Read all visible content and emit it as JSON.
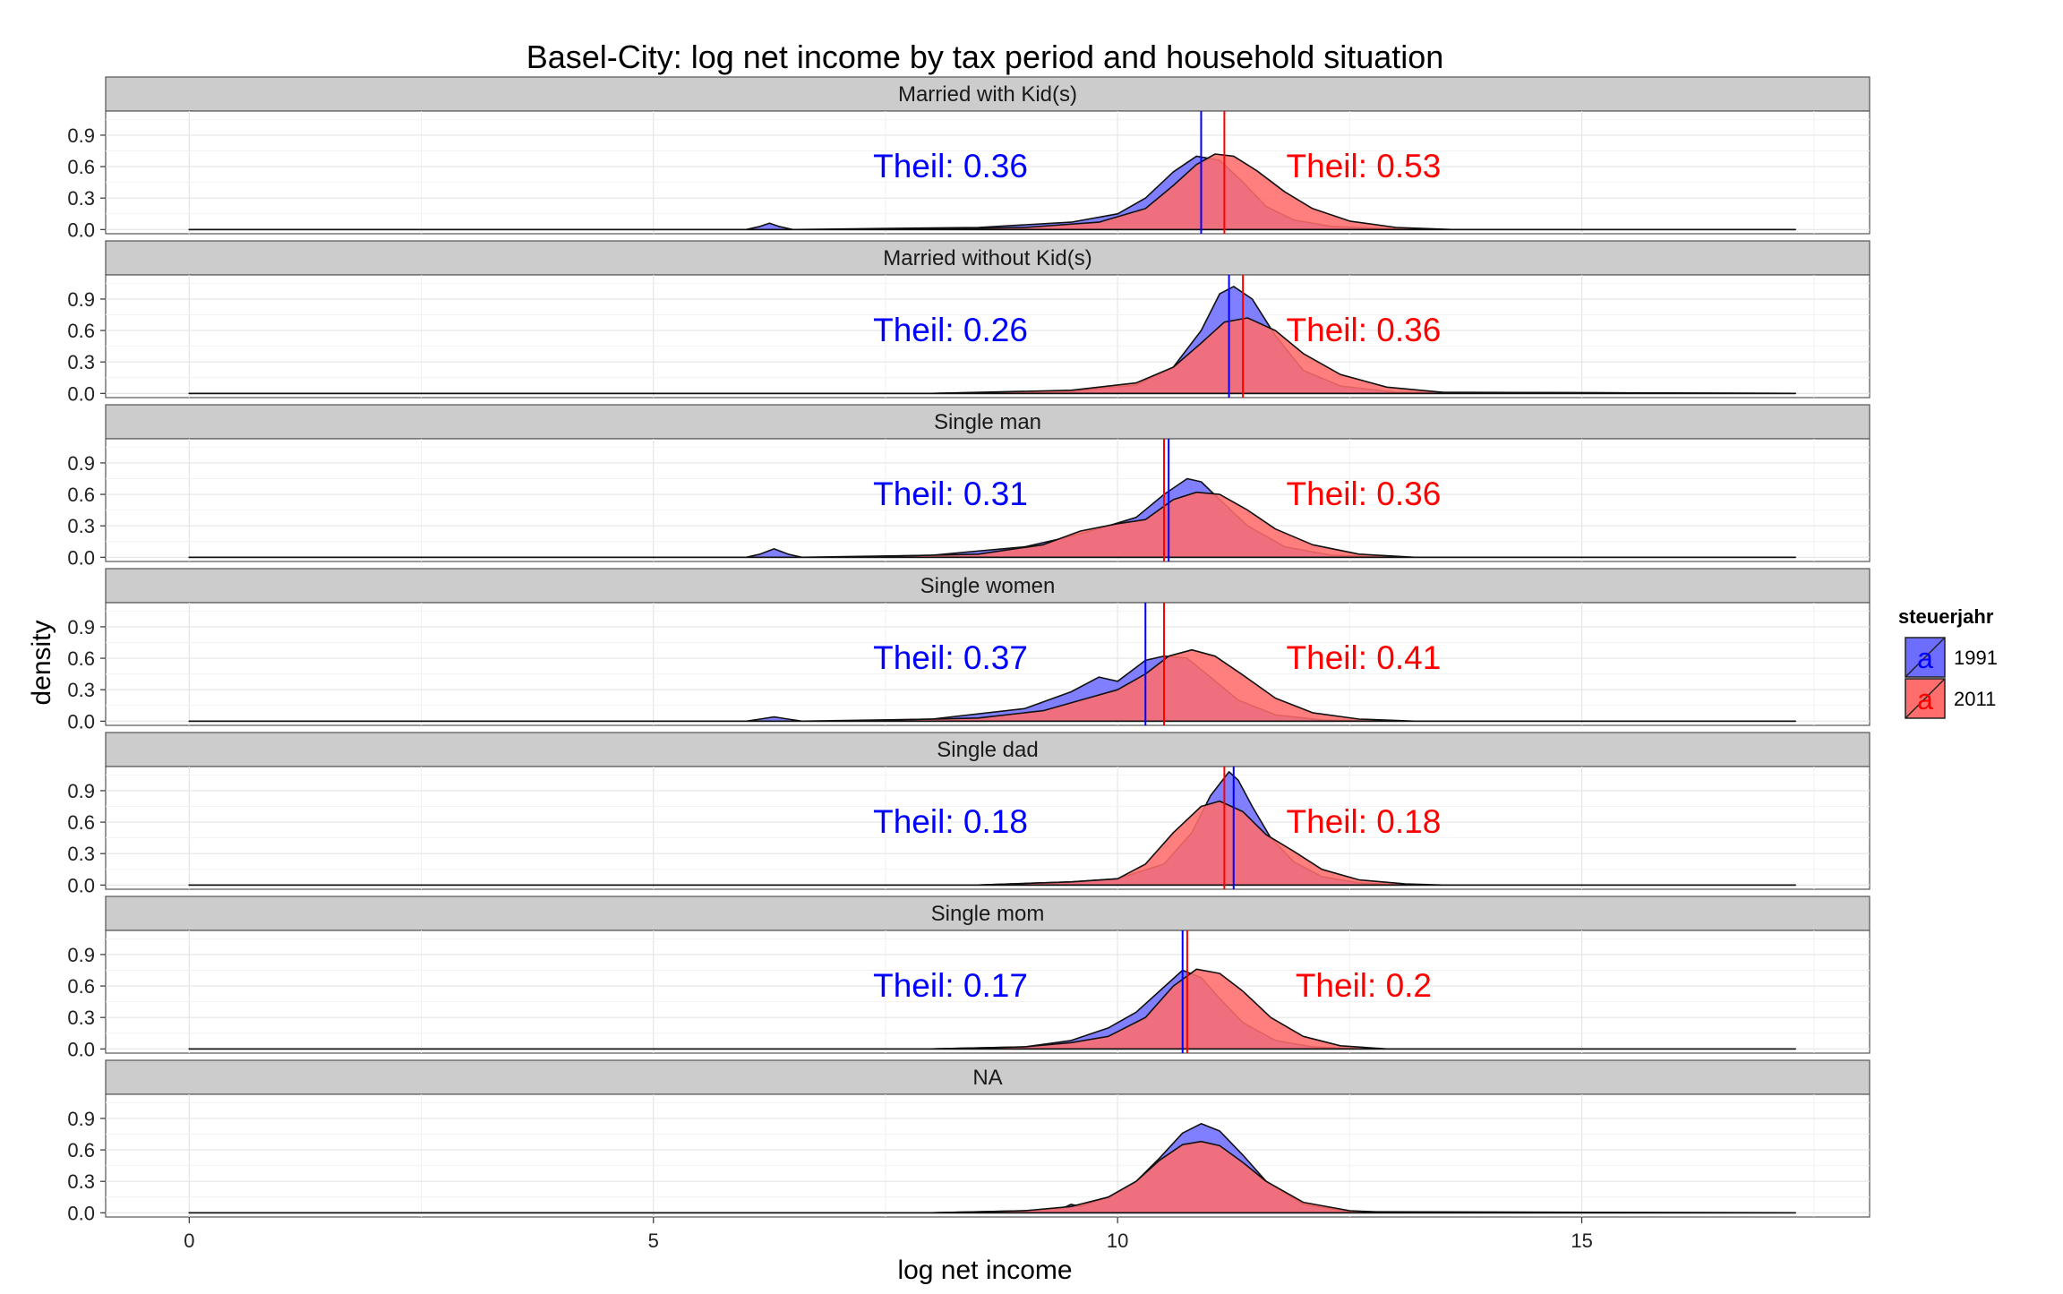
{
  "chart_data": {
    "type": "area",
    "title": "Basel-City: log net income by tax period and household situation",
    "xlabel": "log net income",
    "ylabel": "density",
    "xlim": [
      -0.9,
      18.1
    ],
    "ylim": [
      -0.04,
      1.13
    ],
    "x_ticks": [
      0,
      5,
      10,
      15
    ],
    "x_tick_labels": [
      "0",
      "5",
      "10",
      "15"
    ],
    "y_ticks": [
      0,
      0.3,
      0.6,
      0.9
    ],
    "y_tick_labels": [
      "0.0",
      "0.3",
      "0.6",
      "0.9"
    ],
    "grid": true,
    "legend": {
      "title": "steuerjahr",
      "placement": "right",
      "items": [
        {
          "label": "1991",
          "key_glyph": "a",
          "fill": "#6d6dff",
          "line": "#0000ff"
        },
        {
          "label": "2011",
          "key_glyph": "a",
          "fill": "#ff6d6d",
          "line": "#ff0000"
        }
      ]
    },
    "colors": {
      "1991": "#0000ff",
      "2011": "#ff0000"
    },
    "panels": [
      {
        "label": "Married with Kid(s)",
        "vlines": {
          "1991": 10.9,
          "2011": 11.15
        },
        "theil_1991": "Theil: 0.36",
        "theil_2011": "Theil: 0.53",
        "series": [
          {
            "name": "1991",
            "x": [
              0,
              6.0,
              6.15,
              6.25,
              6.35,
              6.5,
              8.5,
              9.5,
              10.0,
              10.3,
              10.6,
              10.85,
              11.1,
              11.35,
              11.6,
              11.9,
              12.3,
              12.8,
              13.4,
              17.3
            ],
            "y": [
              0,
              0,
              0.03,
              0.06,
              0.03,
              0,
              0.02,
              0.07,
              0.15,
              0.3,
              0.55,
              0.7,
              0.66,
              0.45,
              0.22,
              0.09,
              0.03,
              0.01,
              0,
              0
            ]
          },
          {
            "name": "2011",
            "x": [
              0,
              7.5,
              9.0,
              9.8,
              10.3,
              10.6,
              10.85,
              11.05,
              11.25,
              11.5,
              11.8,
              12.1,
              12.5,
              13.0,
              13.6,
              17.3
            ],
            "y": [
              0,
              0,
              0.02,
              0.07,
              0.2,
              0.42,
              0.62,
              0.72,
              0.7,
              0.56,
              0.36,
              0.2,
              0.08,
              0.02,
              0,
              0
            ]
          }
        ]
      },
      {
        "label": "Married without Kid(s)",
        "vlines": {
          "1991": 11.2,
          "2011": 11.35
        },
        "theil_1991": "Theil: 0.26",
        "theil_2011": "Theil: 0.36",
        "series": [
          {
            "name": "1991",
            "x": [
              0,
              8.0,
              9.5,
              10.2,
              10.6,
              10.9,
              11.1,
              11.25,
              11.45,
              11.7,
              12.0,
              12.4,
              13.0,
              17.3
            ],
            "y": [
              0,
              0,
              0.02,
              0.08,
              0.25,
              0.6,
              0.95,
              1.02,
              0.9,
              0.55,
              0.22,
              0.07,
              0.01,
              0
            ]
          },
          {
            "name": "2011",
            "x": [
              0,
              8.0,
              9.5,
              10.2,
              10.6,
              10.9,
              11.15,
              11.4,
              11.7,
              12.0,
              12.4,
              12.9,
              13.5,
              17.3
            ],
            "y": [
              0,
              0,
              0.03,
              0.1,
              0.25,
              0.48,
              0.68,
              0.72,
              0.6,
              0.38,
              0.18,
              0.06,
              0.01,
              0
            ]
          }
        ]
      },
      {
        "label": "Single man",
        "vlines": {
          "1991": 10.55,
          "2011": 10.5
        },
        "theil_1991": "Theil: 0.31",
        "theil_2011": "Theil: 0.36",
        "series": [
          {
            "name": "1991",
            "x": [
              0,
              6.0,
              6.15,
              6.3,
              6.45,
              6.6,
              8.0,
              9.0,
              9.5,
              9.9,
              10.2,
              10.5,
              10.75,
              10.9,
              11.1,
              11.4,
              11.8,
              12.3,
              13.0,
              17.3
            ],
            "y": [
              0,
              0,
              0.03,
              0.08,
              0.03,
              0,
              0.02,
              0.1,
              0.2,
              0.3,
              0.38,
              0.6,
              0.75,
              0.72,
              0.55,
              0.3,
              0.1,
              0.02,
              0,
              0
            ]
          },
          {
            "name": "2011",
            "x": [
              0,
              7.0,
              8.5,
              9.2,
              9.6,
              10.0,
              10.3,
              10.6,
              10.85,
              11.1,
              11.4,
              11.7,
              12.1,
              12.6,
              13.2,
              17.3
            ],
            "y": [
              0,
              0,
              0.03,
              0.12,
              0.25,
              0.32,
              0.36,
              0.55,
              0.62,
              0.6,
              0.45,
              0.27,
              0.12,
              0.03,
              0,
              0
            ]
          }
        ]
      },
      {
        "label": "Single women",
        "vlines": {
          "1991": 10.3,
          "2011": 10.5
        },
        "theil_1991": "Theil: 0.37",
        "theil_2011": "Theil: 0.41",
        "series": [
          {
            "name": "1991",
            "x": [
              0,
              6.0,
              6.15,
              6.3,
              6.45,
              6.6,
              8.0,
              9.0,
              9.5,
              9.8,
              10.0,
              10.3,
              10.5,
              10.75,
              11.0,
              11.3,
              11.7,
              12.2,
              12.8,
              17.3
            ],
            "y": [
              0,
              0,
              0.02,
              0.04,
              0.02,
              0,
              0.02,
              0.12,
              0.28,
              0.42,
              0.38,
              0.58,
              0.62,
              0.6,
              0.42,
              0.2,
              0.06,
              0.01,
              0,
              0
            ]
          },
          {
            "name": "2011",
            "x": [
              0,
              7.0,
              8.5,
              9.2,
              9.6,
              10.0,
              10.3,
              10.55,
              10.8,
              11.05,
              11.35,
              11.7,
              12.1,
              12.6,
              13.2,
              17.3
            ],
            "y": [
              0,
              0,
              0.03,
              0.1,
              0.2,
              0.3,
              0.45,
              0.62,
              0.68,
              0.62,
              0.44,
              0.22,
              0.08,
              0.02,
              0,
              0
            ]
          }
        ]
      },
      {
        "label": "Single dad",
        "vlines": {
          "1991": 11.25,
          "2011": 11.15
        },
        "theil_1991": "Theil: 0.18",
        "theil_2011": "Theil: 0.18",
        "series": [
          {
            "name": "1991",
            "x": [
              0,
              8.5,
              9.5,
              10.0,
              10.5,
              10.8,
              11.0,
              11.2,
              11.3,
              11.45,
              11.65,
              11.9,
              12.2,
              12.6,
              13.1,
              17.3
            ],
            "y": [
              0,
              0,
              0.03,
              0.06,
              0.2,
              0.5,
              0.85,
              1.08,
              1.0,
              0.75,
              0.45,
              0.22,
              0.08,
              0.02,
              0,
              0
            ]
          },
          {
            "name": "2011",
            "x": [
              0,
              8.5,
              9.5,
              10.0,
              10.3,
              10.6,
              10.9,
              11.1,
              11.35,
              11.6,
              11.9,
              12.2,
              12.6,
              13.1,
              13.5,
              17.3
            ],
            "y": [
              0,
              0,
              0.03,
              0.06,
              0.2,
              0.5,
              0.75,
              0.8,
              0.7,
              0.48,
              0.32,
              0.15,
              0.05,
              0.01,
              0,
              0
            ]
          }
        ]
      },
      {
        "label": "Single mom",
        "vlines": {
          "1991": 10.7,
          "2011": 10.75
        },
        "theil_1991": "Theil: 0.17",
        "theil_2011": "Theil: 0.2",
        "series": [
          {
            "name": "1991",
            "x": [
              0,
              8.0,
              9.0,
              9.5,
              9.9,
              10.2,
              10.45,
              10.7,
              10.9,
              11.1,
              11.35,
              11.7,
              12.1,
              12.6,
              17.3
            ],
            "y": [
              0,
              0,
              0.02,
              0.08,
              0.2,
              0.35,
              0.55,
              0.75,
              0.68,
              0.48,
              0.25,
              0.08,
              0.02,
              0,
              0
            ]
          },
          {
            "name": "2011",
            "x": [
              0,
              8.0,
              9.0,
              9.5,
              9.9,
              10.3,
              10.6,
              10.85,
              11.1,
              11.35,
              11.65,
              12.0,
              12.4,
              12.9,
              17.3
            ],
            "y": [
              0,
              0,
              0.02,
              0.06,
              0.12,
              0.3,
              0.6,
              0.76,
              0.72,
              0.55,
              0.3,
              0.12,
              0.03,
              0,
              0
            ]
          }
        ]
      },
      {
        "label": "NA",
        "vlines": null,
        "theil_1991": "",
        "theil_2011": "",
        "series": [
          {
            "name": "1991",
            "x": [
              0,
              8.0,
              9.0,
              9.4,
              9.5,
              9.6,
              9.9,
              10.2,
              10.45,
              10.7,
              10.9,
              11.1,
              11.35,
              11.6,
              12.0,
              12.5,
              17.3
            ],
            "y": [
              0,
              0,
              0.02,
              0.04,
              0.08,
              0.06,
              0.15,
              0.3,
              0.52,
              0.76,
              0.85,
              0.78,
              0.55,
              0.3,
              0.08,
              0.01,
              0
            ]
          },
          {
            "name": "2011",
            "x": [
              0,
              8.0,
              9.0,
              9.5,
              9.9,
              10.2,
              10.45,
              10.7,
              10.9,
              11.1,
              11.35,
              11.6,
              12.0,
              12.5,
              13.0,
              17.3
            ],
            "y": [
              0,
              0,
              0.02,
              0.06,
              0.15,
              0.3,
              0.5,
              0.65,
              0.68,
              0.64,
              0.48,
              0.3,
              0.1,
              0.02,
              0,
              0
            ]
          }
        ]
      }
    ]
  }
}
